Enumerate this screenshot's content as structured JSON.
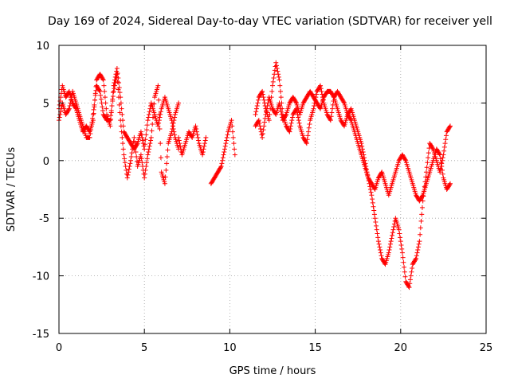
{
  "chart_data": {
    "type": "scatter",
    "title": "Day 169 of 2024, Sidereal Day-to-day VTEC variation (SDTVAR) for receiver yell",
    "xlabel": "GPS time / hours",
    "ylabel": "SDTVAR / TECUs",
    "xlim": [
      0,
      25
    ],
    "ylim": [
      -15,
      10
    ],
    "xticks": [
      0,
      5,
      10,
      15,
      20,
      25
    ],
    "yticks": [
      -15,
      -10,
      -5,
      0,
      5,
      10
    ],
    "grid": true,
    "marker": "+",
    "marker_color": "#ff0000",
    "series": [
      {
        "name": "SDTVAR",
        "segments": [
          {
            "x": [
              0.0,
              0.2,
              0.4,
              0.6,
              0.8,
              1.0,
              1.2,
              1.4,
              1.6,
              1.8,
              2.0,
              2.2,
              2.4,
              2.6,
              2.8,
              3.0,
              3.2,
              3.4,
              3.6,
              3.8,
              4.0,
              4.2,
              4.4,
              4.6,
              4.8,
              5.0,
              5.2,
              5.4,
              5.6,
              5.8,
              6.0,
              6.2,
              6.4,
              6.6,
              6.8,
              7.0
            ],
            "y": [
              4.5,
              6.5,
              5.5,
              6.0,
              5.0,
              4.5,
              3.5,
              2.5,
              3.0,
              2.5,
              3.5,
              7.0,
              7.5,
              7.0,
              4.0,
              3.0,
              6.5,
              8.0,
              5.5,
              2.5,
              2.0,
              1.5,
              1.0,
              1.5,
              2.5,
              1.0,
              3.5,
              5.0,
              4.0,
              3.0,
              4.5,
              5.5,
              4.5,
              3.5,
              2.0,
              1.0
            ]
          },
          {
            "x": [
              0.0,
              0.2,
              0.4,
              0.6,
              0.8,
              1.0,
              1.2,
              1.4,
              1.6,
              1.8,
              2.0,
              2.2,
              2.4,
              2.6,
              2.8,
              3.0,
              3.2,
              3.4,
              3.6,
              3.8,
              4.0,
              4.2,
              4.4,
              4.6,
              4.8,
              5.0,
              5.2,
              5.4,
              5.6,
              5.8,
              6.0,
              6.2,
              6.4,
              6.6,
              6.8,
              7.0
            ],
            "y": [
              3.5,
              5.0,
              4.0,
              4.5,
              6.0,
              5.0,
              4.0,
              3.0,
              2.0,
              2.0,
              4.0,
              6.5,
              6.0,
              4.0,
              3.5,
              3.5,
              6.0,
              7.5,
              3.5,
              0.5,
              -1.5,
              0.0,
              2.0,
              -0.5,
              0.5,
              -1.5,
              0.5,
              2.0,
              5.5,
              6.5,
              -1.0,
              -2.0,
              1.5,
              2.5,
              4.0,
              5.0
            ]
          },
          {
            "x": [
              7.0,
              7.2,
              7.4,
              7.6,
              7.8,
              8.0,
              8.2,
              8.4,
              8.6
            ],
            "y": [
              2.0,
              0.5,
              1.5,
              2.5,
              2.0,
              3.0,
              1.5,
              0.5,
              2.0
            ]
          },
          {
            "x": [
              8.9,
              9.1,
              9.3,
              9.5,
              9.7,
              9.9,
              10.1,
              10.3
            ],
            "y": [
              -2.0,
              -1.5,
              -1.0,
              -0.5,
              1.0,
              2.5,
              3.5,
              0.5
            ]
          },
          {
            "x": [
              11.5,
              11.7,
              11.9,
              12.1,
              12.3,
              12.5,
              12.7,
              12.9,
              13.1,
              13.3,
              13.5,
              13.7,
              13.9,
              14.1,
              14.3,
              14.5,
              14.7,
              14.9,
              15.1,
              15.3,
              15.5,
              15.7,
              15.9,
              16.1,
              16.3,
              16.5,
              16.7,
              16.9,
              17.1,
              17.3,
              17.5,
              17.7,
              17.9,
              18.1,
              18.3,
              18.5,
              18.7,
              18.9,
              19.1,
              19.3,
              19.5,
              19.7,
              19.9,
              20.1,
              20.3,
              20.5,
              20.7,
              20.9,
              21.1,
              21.3,
              21.5,
              21.7,
              21.9,
              22.1,
              22.3,
              22.5,
              22.7,
              22.9
            ],
            "y": [
              4.0,
              5.5,
              6.0,
              4.5,
              3.5,
              6.5,
              8.5,
              7.0,
              4.0,
              3.0,
              2.5,
              4.0,
              4.5,
              3.0,
              2.0,
              1.5,
              3.5,
              4.5,
              6.0,
              6.5,
              5.0,
              4.0,
              3.5,
              5.5,
              6.0,
              5.5,
              5.0,
              4.0,
              3.5,
              2.5,
              1.5,
              0.5,
              -0.5,
              -1.5,
              -3.0,
              -5.0,
              -7.0,
              -8.5,
              -9.0,
              -8.0,
              -6.5,
              -5.0,
              -6.0,
              -8.0,
              -10.5,
              -11.0,
              -9.0,
              -8.5,
              -7.0,
              -3.5,
              -1.0,
              1.5,
              1.0,
              0.0,
              -1.0,
              0.5,
              2.5,
              3.0
            ]
          },
          {
            "x": [
              11.5,
              11.7,
              11.9,
              12.1,
              12.3,
              12.5,
              12.7,
              12.9,
              13.1,
              13.3,
              13.5,
              13.7,
              13.9,
              14.1,
              14.3,
              14.5,
              14.7,
              14.9,
              15.1,
              15.3,
              15.5,
              15.7,
              15.9,
              16.1,
              16.3,
              16.5,
              16.7,
              16.9,
              17.1,
              17.3,
              17.5,
              17.7,
              17.9,
              18.1,
              18.3,
              18.5,
              18.7,
              18.9,
              19.1,
              19.3,
              19.5,
              19.7,
              19.9,
              20.1,
              20.3,
              20.5,
              20.7,
              20.9,
              21.1,
              21.3,
              21.5,
              21.7,
              21.9,
              22.1,
              22.3,
              22.5,
              22.7,
              22.9
            ],
            "y": [
              3.0,
              3.5,
              2.0,
              4.0,
              5.5,
              4.5,
              4.0,
              5.0,
              3.5,
              4.0,
              5.0,
              5.5,
              5.0,
              4.0,
              5.0,
              5.5,
              6.0,
              5.5,
              5.0,
              4.5,
              5.5,
              6.0,
              6.0,
              5.5,
              4.5,
              3.5,
              3.0,
              4.0,
              4.5,
              3.5,
              2.5,
              1.5,
              0.0,
              -1.5,
              -2.0,
              -2.5,
              -1.5,
              -1.0,
              -2.0,
              -3.0,
              -2.0,
              -1.0,
              0.0,
              0.5,
              0.0,
              -1.0,
              -2.0,
              -3.0,
              -3.5,
              -3.0,
              -2.0,
              -1.0,
              0.0,
              1.0,
              0.5,
              -1.5,
              -2.5,
              -2.0
            ]
          }
        ]
      }
    ]
  }
}
